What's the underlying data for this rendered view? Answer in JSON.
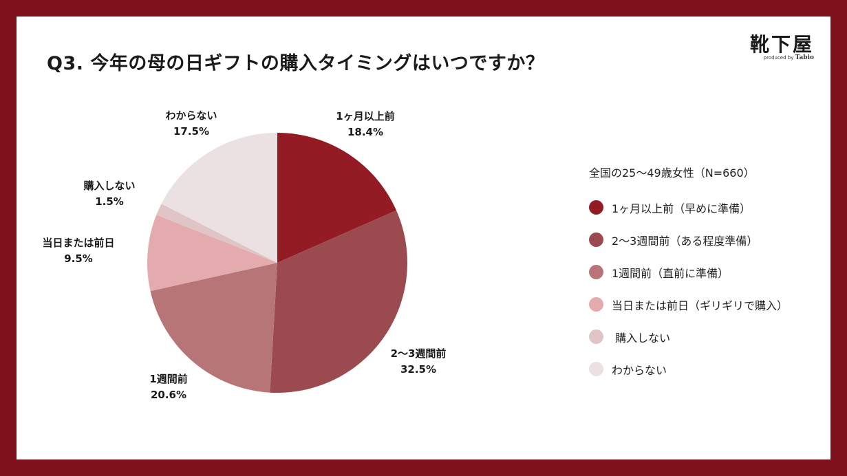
{
  "title": "Q3. 今年の母の日ギフトの購入タイミングはいつですか？",
  "logo": {
    "name": "靴下屋",
    "sub_prefix": "produced by",
    "sub_brand": "Tabio"
  },
  "legend_title": "全国の25〜49歳女性（N=660）",
  "chart_data": {
    "type": "pie",
    "start_angle_deg": 0,
    "direction": "clockwise",
    "slices": [
      {
        "label": "1ヶ月以上前",
        "value": 18.4,
        "value_text": "18.4%",
        "legend": "1ヶ月以上前（早めに準備）",
        "color": "#931c24"
      },
      {
        "label": "2～3週間前",
        "value": 32.5,
        "value_text": "32.5%",
        "legend": "2〜3週間前（ある程度準備）",
        "color": "#9b4b50"
      },
      {
        "label": "1週間前",
        "value": 20.6,
        "value_text": "20.6%",
        "legend": "1週間前（直前に準備）",
        "color": "#b87578"
      },
      {
        "label": "当日または前日",
        "value": 9.5,
        "value_text": "9.5%",
        "legend": "当日または前日（ギリギリで購入）",
        "color": "#e3abad"
      },
      {
        "label": "購入しない",
        "value": 1.5,
        "value_text": "1.5%",
        "legend": " 購入しない",
        "color": "#e0c5c7"
      },
      {
        "label": "わからない",
        "value": 17.5,
        "value_text": "17.5%",
        "legend": "わからない",
        "color": "#ebe1e2"
      }
    ]
  }
}
